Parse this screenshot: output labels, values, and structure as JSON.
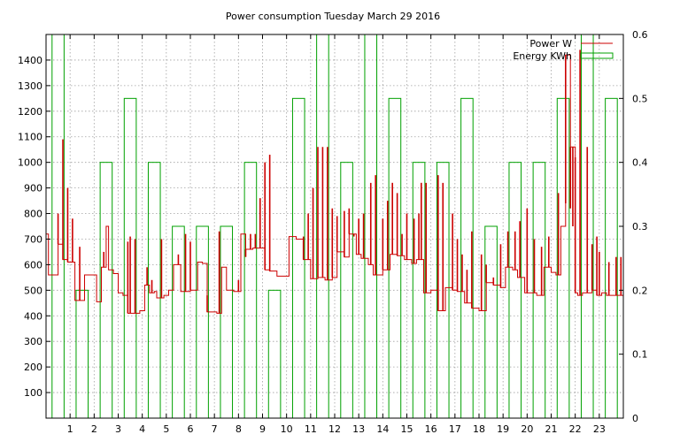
{
  "chart_data": {
    "type": "line",
    "title": "Power consumption Tuesday March 29 2016",
    "xlabel": "",
    "ylabel": "",
    "y2label": "",
    "xlim": [
      0,
      24
    ],
    "ylim": [
      0,
      1500
    ],
    "y2lim": [
      0,
      0.6
    ],
    "x_ticks": [
      "1",
      "2",
      "3",
      "4",
      "5",
      "6",
      "7",
      "8",
      "9",
      "10",
      "11",
      "12",
      "13",
      "14",
      "15",
      "16",
      "17",
      "18",
      "19",
      "20",
      "21",
      "22",
      "23"
    ],
    "y_ticks": [
      "100",
      "200",
      "300",
      "400",
      "500",
      "600",
      "700",
      "800",
      "900",
      "1000",
      "1100",
      "1200",
      "1300",
      "1400"
    ],
    "y2_ticks": [
      "0",
      "0.1",
      "0.2",
      "0.3",
      "0.4",
      "0.5",
      "0.6"
    ],
    "grid": true,
    "legend": "top-right",
    "series": [
      {
        "name": "Power W",
        "axis": "y",
        "color": "#cc0000",
        "style": "step",
        "x": [
          0.0,
          0.1,
          0.5,
          0.7,
          0.9,
          1.2,
          1.4,
          1.6,
          1.8,
          2.1,
          2.3,
          2.5,
          2.6,
          2.8,
          3.0,
          3.2,
          3.4,
          3.6,
          3.9,
          4.1,
          4.3,
          4.5,
          4.6,
          4.9,
          5.1,
          5.3,
          5.6,
          5.8,
          6.0,
          6.3,
          6.5,
          6.7,
          6.9,
          7.1,
          7.3,
          7.5,
          7.8,
          8.1,
          8.3,
          8.6,
          8.8,
          9.1,
          9.3,
          9.6,
          10.1,
          10.4,
          10.7,
          11.0,
          11.3,
          11.6,
          11.9,
          12.1,
          12.4,
          12.6,
          12.9,
          13.1,
          13.4,
          13.6,
          14.0,
          14.3,
          14.6,
          14.9,
          15.2,
          15.4,
          15.7,
          16.0,
          16.3,
          16.6,
          16.9,
          17.1,
          17.4,
          17.7,
          18.0,
          18.3,
          18.6,
          18.9,
          19.1,
          19.4,
          19.6,
          19.9,
          20.1,
          20.4,
          20.7,
          21.0,
          21.2,
          21.4,
          21.6,
          21.8,
          22.0,
          22.1,
          22.3,
          22.5,
          22.7,
          22.9,
          23.1,
          23.3,
          23.6,
          23.9
        ],
        "y": [
          720,
          560,
          680,
          620,
          610,
          460,
          460,
          560,
          560,
          455,
          590,
          750,
          580,
          565,
          490,
          480,
          410,
          410,
          420,
          520,
          490,
          495,
          470,
          480,
          500,
          600,
          495,
          495,
          500,
          610,
          605,
          415,
          415,
          410,
          590,
          500,
          495,
          720,
          660,
          665,
          665,
          580,
          575,
          555,
          710,
          700,
          620,
          545,
          550,
          540,
          550,
          650,
          630,
          720,
          640,
          625,
          600,
          560,
          580,
          640,
          635,
          620,
          605,
          620,
          490,
          500,
          420,
          510,
          500,
          495,
          450,
          430,
          420,
          530,
          520,
          510,
          590,
          580,
          550,
          490,
          490,
          480,
          590,
          570,
          560,
          750,
          1420,
          1060,
          490,
          480,
          490,
          490,
          500,
          480,
          490,
          480,
          480,
          480
        ],
        "spikes": [
          [
            0.5,
            800
          ],
          [
            0.7,
            1090
          ],
          [
            0.9,
            900
          ],
          [
            1.1,
            780
          ],
          [
            1.4,
            670
          ],
          [
            2.4,
            650
          ],
          [
            3.4,
            690
          ],
          [
            3.5,
            710
          ],
          [
            3.7,
            700
          ],
          [
            4.2,
            590
          ],
          [
            4.4,
            540
          ],
          [
            4.8,
            700
          ],
          [
            5.5,
            640
          ],
          [
            5.8,
            720
          ],
          [
            6.0,
            690
          ],
          [
            6.7,
            480
          ],
          [
            7.2,
            730
          ],
          [
            8.0,
            540
          ],
          [
            8.3,
            630
          ],
          [
            8.5,
            720
          ],
          [
            8.7,
            720
          ],
          [
            8.9,
            860
          ],
          [
            9.1,
            1000
          ],
          [
            9.3,
            1030
          ],
          [
            10.7,
            710
          ],
          [
            10.9,
            800
          ],
          [
            11.1,
            900
          ],
          [
            11.3,
            1060
          ],
          [
            11.5,
            1060
          ],
          [
            11.7,
            1060
          ],
          [
            11.9,
            820
          ],
          [
            12.1,
            790
          ],
          [
            12.4,
            810
          ],
          [
            12.6,
            820
          ],
          [
            12.8,
            710
          ],
          [
            13.0,
            780
          ],
          [
            13.2,
            800
          ],
          [
            13.5,
            920
          ],
          [
            13.7,
            950
          ],
          [
            14.0,
            780
          ],
          [
            14.2,
            850
          ],
          [
            14.4,
            920
          ],
          [
            14.6,
            880
          ],
          [
            14.8,
            720
          ],
          [
            15.0,
            800
          ],
          [
            15.3,
            780
          ],
          [
            15.5,
            800
          ],
          [
            15.6,
            920
          ],
          [
            15.8,
            920
          ],
          [
            16.3,
            950
          ],
          [
            16.5,
            920
          ],
          [
            16.9,
            800
          ],
          [
            17.1,
            700
          ],
          [
            17.3,
            640
          ],
          [
            17.5,
            580
          ],
          [
            17.7,
            730
          ],
          [
            18.1,
            640
          ],
          [
            18.3,
            600
          ],
          [
            18.6,
            550
          ],
          [
            18.9,
            680
          ],
          [
            19.2,
            730
          ],
          [
            19.5,
            730
          ],
          [
            19.7,
            770
          ],
          [
            20.0,
            820
          ],
          [
            20.3,
            700
          ],
          [
            20.6,
            670
          ],
          [
            20.9,
            710
          ],
          [
            21.3,
            880
          ],
          [
            21.6,
            840
          ],
          [
            21.8,
            820
          ],
          [
            21.9,
            750
          ],
          [
            22.0,
            1020
          ],
          [
            22.2,
            1440
          ],
          [
            22.5,
            1060
          ],
          [
            22.7,
            680
          ],
          [
            22.9,
            710
          ],
          [
            23.0,
            650
          ],
          [
            23.4,
            610
          ],
          [
            23.7,
            630
          ],
          [
            23.9,
            630
          ]
        ]
      },
      {
        "name": "Energy KWh",
        "axis": "y2",
        "color": "#00a000",
        "style": "bars",
        "x": [
          0,
          1,
          2,
          3,
          4,
          5,
          6,
          7,
          8,
          9,
          10,
          11,
          12,
          13,
          14,
          15,
          16,
          17,
          18,
          19,
          20,
          21,
          22,
          23
        ],
        "values": [
          0.6,
          0.2,
          0.4,
          0.5,
          0.4,
          0.3,
          0.3,
          0.3,
          0.4,
          0.2,
          0.5,
          0.6,
          0.4,
          0.6,
          0.5,
          0.4,
          0.4,
          0.5,
          0.3,
          0.4,
          0.4,
          0.5,
          0.6,
          0.5
        ]
      }
    ]
  }
}
